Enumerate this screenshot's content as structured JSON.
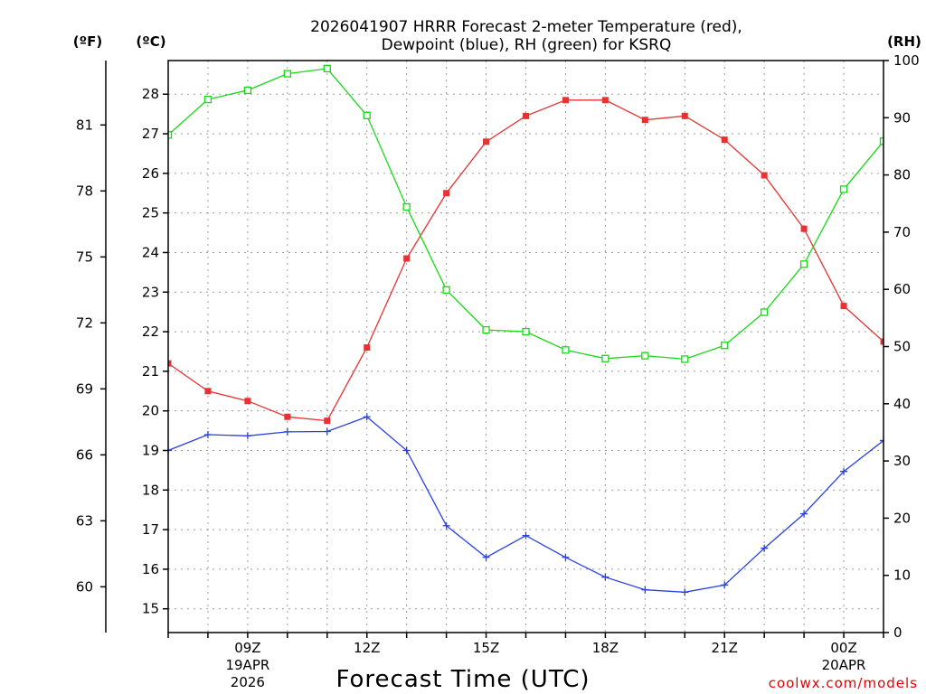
{
  "chart_data": {
    "type": "line",
    "title_line1": "2026041907 HRRR Forecast 2-meter Temperature (red),",
    "title_line2": "Dewpoint (blue), RH (green) for KSRQ",
    "xlabel": "Forecast Time (UTC)",
    "credit": "coolwx.com/models",
    "credit_color": "#e60000",
    "unit_f": "(ºF)",
    "unit_c": "(ºC)",
    "unit_rh": "(RH)",
    "x_hours": [
      7,
      8,
      9,
      10,
      11,
      12,
      13,
      14,
      15,
      16,
      17,
      18,
      19,
      20,
      21,
      22,
      23,
      24,
      25
    ],
    "x_tick_hours": [
      9,
      12,
      15,
      18,
      21,
      24
    ],
    "x_tick_labels": [
      {
        "line1": "09Z",
        "line2": "19APR",
        "line3": "2026"
      },
      {
        "line1": "12Z",
        "line2": "",
        "line3": ""
      },
      {
        "line1": "15Z",
        "line2": "",
        "line3": ""
      },
      {
        "line1": "18Z",
        "line2": "",
        "line3": ""
      },
      {
        "line1": "21Z",
        "line2": "",
        "line3": ""
      },
      {
        "line1": "00Z",
        "line2": "20APR",
        "line3": ""
      }
    ],
    "x_range": [
      7,
      25
    ],
    "y_celsius_range": [
      14.4,
      28.85
    ],
    "y_celsius_ticks": [
      "15",
      "16",
      "17",
      "18",
      "19",
      "20",
      "21",
      "22",
      "23",
      "24",
      "25",
      "26",
      "27",
      "28"
    ],
    "y_fahrenheit_ticks": [
      "60",
      "63",
      "66",
      "69",
      "72",
      "75",
      "78",
      "81"
    ],
    "y_rh_range": [
      0,
      100
    ],
    "y_rh_ticks": [
      "0",
      "10",
      "20",
      "30",
      "40",
      "50",
      "60",
      "70",
      "80",
      "90",
      "100"
    ],
    "series": [
      {
        "name": "Temperature",
        "units": "C",
        "color": "#e63232",
        "marker": "filled-square",
        "values": [
          21.2,
          20.5,
          20.25,
          19.85,
          19.75,
          21.6,
          23.85,
          25.5,
          26.8,
          27.45,
          27.85,
          27.85,
          27.35,
          27.45,
          26.85,
          25.95,
          24.6,
          22.65,
          21.75
        ]
      },
      {
        "name": "Dewpoint",
        "units": "C",
        "color": "#2841e6",
        "marker": "plus",
        "values": [
          19.0,
          19.4,
          19.37,
          19.47,
          19.48,
          19.85,
          19.0,
          17.1,
          16.3,
          16.85,
          16.3,
          15.8,
          15.48,
          15.42,
          15.6,
          16.53,
          17.4,
          18.47,
          19.25
        ]
      },
      {
        "name": "RH",
        "units": "%",
        "color": "#16d816",
        "marker": "open-square",
        "values": [
          87,
          93.2,
          94.8,
          97.7,
          98.6,
          90.4,
          74.4,
          59.9,
          52.9,
          52.6,
          49.4,
          47.9,
          48.4,
          47.8,
          50.2,
          56,
          64.4,
          77.5,
          85.9
        ]
      }
    ]
  }
}
